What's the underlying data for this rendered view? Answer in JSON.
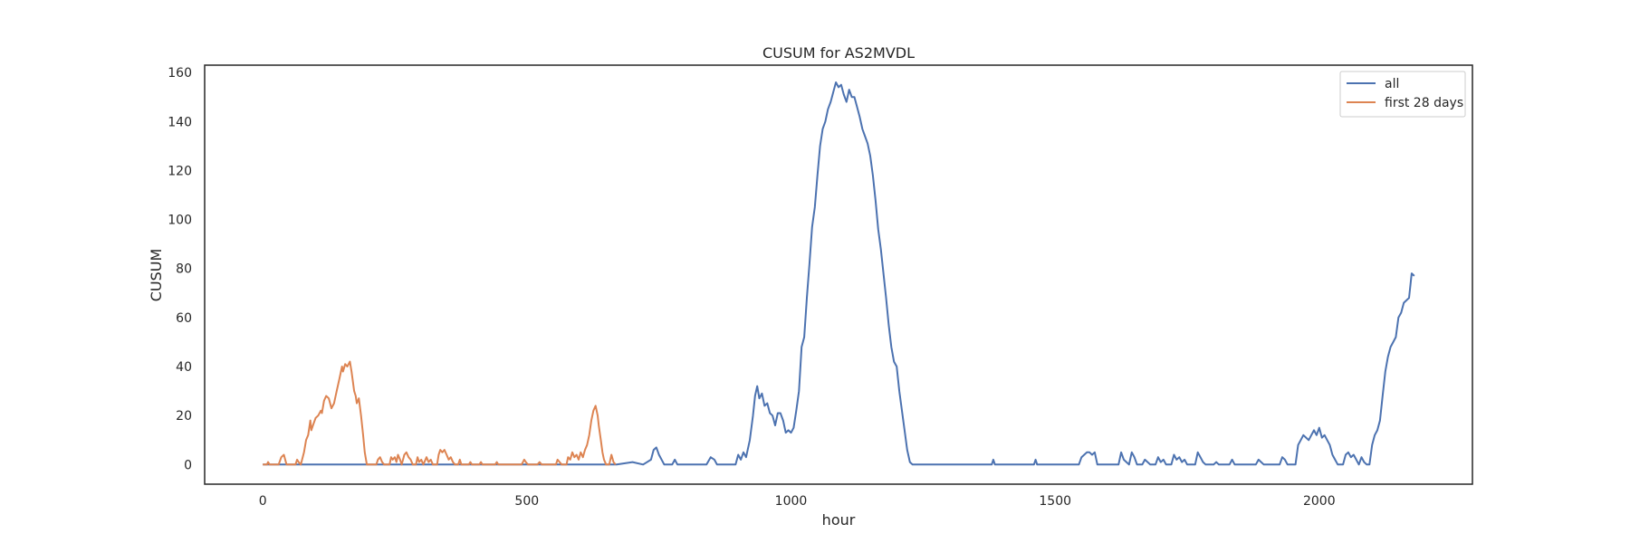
{
  "chart_data": {
    "type": "line",
    "title": "CUSUM for AS2MVDL",
    "xlabel": "hour",
    "ylabel": "CUSUM",
    "xlim": [
      -110,
      2290
    ],
    "ylim": [
      -8,
      163
    ],
    "xticks": [
      0,
      500,
      1000,
      1500,
      2000
    ],
    "yticks": [
      0,
      20,
      40,
      60,
      80,
      100,
      120,
      140,
      160
    ],
    "grid": false,
    "legend_position": "top-right",
    "series": [
      {
        "name": "all",
        "color": "#4c72b0",
        "points": [
          [
            0,
            0
          ],
          [
            670,
            0
          ],
          [
            700,
            1
          ],
          [
            720,
            0
          ],
          [
            735,
            2
          ],
          [
            740,
            6
          ],
          [
            745,
            7
          ],
          [
            750,
            4
          ],
          [
            760,
            0
          ],
          [
            775,
            0
          ],
          [
            780,
            2
          ],
          [
            785,
            0
          ],
          [
            840,
            0
          ],
          [
            848,
            3
          ],
          [
            855,
            2
          ],
          [
            860,
            0
          ],
          [
            895,
            0
          ],
          [
            900,
            4
          ],
          [
            905,
            2
          ],
          [
            910,
            5
          ],
          [
            915,
            3
          ],
          [
            922,
            10
          ],
          [
            928,
            20
          ],
          [
            932,
            28
          ],
          [
            936,
            32
          ],
          [
            940,
            27
          ],
          [
            945,
            29
          ],
          [
            950,
            24
          ],
          [
            955,
            25
          ],
          [
            960,
            21
          ],
          [
            965,
            20
          ],
          [
            970,
            16
          ],
          [
            975,
            21
          ],
          [
            980,
            21
          ],
          [
            985,
            18
          ],
          [
            990,
            13
          ],
          [
            995,
            14
          ],
          [
            1000,
            13
          ],
          [
            1005,
            15
          ],
          [
            1010,
            22
          ],
          [
            1015,
            30
          ],
          [
            1020,
            48
          ],
          [
            1025,
            52
          ],
          [
            1030,
            68
          ],
          [
            1035,
            82
          ],
          [
            1040,
            97
          ],
          [
            1045,
            105
          ],
          [
            1050,
            118
          ],
          [
            1055,
            130
          ],
          [
            1060,
            137
          ],
          [
            1065,
            140
          ],
          [
            1070,
            145
          ],
          [
            1075,
            148
          ],
          [
            1080,
            152
          ],
          [
            1085,
            156
          ],
          [
            1090,
            154
          ],
          [
            1095,
            155
          ],
          [
            1100,
            151
          ],
          [
            1105,
            148
          ],
          [
            1110,
            153
          ],
          [
            1115,
            150
          ],
          [
            1120,
            150
          ],
          [
            1125,
            146
          ],
          [
            1130,
            142
          ],
          [
            1135,
            137
          ],
          [
            1140,
            134
          ],
          [
            1145,
            131
          ],
          [
            1150,
            126
          ],
          [
            1155,
            118
          ],
          [
            1160,
            108
          ],
          [
            1165,
            96
          ],
          [
            1170,
            88
          ],
          [
            1175,
            78
          ],
          [
            1180,
            68
          ],
          [
            1185,
            57
          ],
          [
            1190,
            48
          ],
          [
            1195,
            42
          ],
          [
            1200,
            40
          ],
          [
            1205,
            30
          ],
          [
            1210,
            22
          ],
          [
            1215,
            14
          ],
          [
            1220,
            6
          ],
          [
            1225,
            1
          ],
          [
            1230,
            0
          ],
          [
            1380,
            0
          ],
          [
            1383,
            2
          ],
          [
            1386,
            0
          ],
          [
            1460,
            0
          ],
          [
            1463,
            2
          ],
          [
            1466,
            0
          ],
          [
            1545,
            0
          ],
          [
            1550,
            3
          ],
          [
            1555,
            4
          ],
          [
            1560,
            5
          ],
          [
            1565,
            5
          ],
          [
            1570,
            4
          ],
          [
            1575,
            5
          ],
          [
            1580,
            0
          ],
          [
            1620,
            0
          ],
          [
            1625,
            5
          ],
          [
            1630,
            2
          ],
          [
            1635,
            1
          ],
          [
            1640,
            0
          ],
          [
            1645,
            5
          ],
          [
            1650,
            3
          ],
          [
            1655,
            0
          ],
          [
            1665,
            0
          ],
          [
            1670,
            2
          ],
          [
            1675,
            1
          ],
          [
            1680,
            0
          ],
          [
            1690,
            0
          ],
          [
            1695,
            3
          ],
          [
            1700,
            1
          ],
          [
            1705,
            2
          ],
          [
            1710,
            0
          ],
          [
            1720,
            0
          ],
          [
            1725,
            4
          ],
          [
            1730,
            2
          ],
          [
            1735,
            3
          ],
          [
            1740,
            1
          ],
          [
            1745,
            2
          ],
          [
            1750,
            0
          ],
          [
            1765,
            0
          ],
          [
            1770,
            5
          ],
          [
            1775,
            3
          ],
          [
            1780,
            1
          ],
          [
            1785,
            0
          ],
          [
            1800,
            0
          ],
          [
            1805,
            1
          ],
          [
            1810,
            0
          ],
          [
            1830,
            0
          ],
          [
            1835,
            2
          ],
          [
            1840,
            0
          ],
          [
            1880,
            0
          ],
          [
            1885,
            2
          ],
          [
            1890,
            1
          ],
          [
            1895,
            0
          ],
          [
            1925,
            0
          ],
          [
            1930,
            3
          ],
          [
            1935,
            2
          ],
          [
            1940,
            0
          ],
          [
            1955,
            0
          ],
          [
            1960,
            8
          ],
          [
            1965,
            10
          ],
          [
            1970,
            12
          ],
          [
            1975,
            11
          ],
          [
            1980,
            10
          ],
          [
            1985,
            12
          ],
          [
            1990,
            14
          ],
          [
            1995,
            12
          ],
          [
            2000,
            15
          ],
          [
            2005,
            11
          ],
          [
            2010,
            12
          ],
          [
            2015,
            10
          ],
          [
            2020,
            8
          ],
          [
            2025,
            4
          ],
          [
            2030,
            2
          ],
          [
            2035,
            0
          ],
          [
            2045,
            0
          ],
          [
            2050,
            4
          ],
          [
            2055,
            5
          ],
          [
            2060,
            3
          ],
          [
            2065,
            4
          ],
          [
            2070,
            2
          ],
          [
            2075,
            0
          ],
          [
            2080,
            3
          ],
          [
            2085,
            1
          ],
          [
            2090,
            0
          ],
          [
            2095,
            0
          ],
          [
            2100,
            8
          ],
          [
            2105,
            12
          ],
          [
            2110,
            14
          ],
          [
            2115,
            18
          ],
          [
            2120,
            28
          ],
          [
            2125,
            38
          ],
          [
            2130,
            44
          ],
          [
            2135,
            48
          ],
          [
            2140,
            50
          ],
          [
            2145,
            52
          ],
          [
            2150,
            60
          ],
          [
            2155,
            62
          ],
          [
            2160,
            66
          ],
          [
            2165,
            67
          ],
          [
            2170,
            68
          ],
          [
            2175,
            78
          ],
          [
            2180,
            77
          ]
        ]
      },
      {
        "name": "first 28 days",
        "color": "#dd8452",
        "points": [
          [
            0,
            0
          ],
          [
            8,
            0
          ],
          [
            10,
            1
          ],
          [
            13,
            0
          ],
          [
            30,
            0
          ],
          [
            35,
            3
          ],
          [
            40,
            4
          ],
          [
            45,
            0
          ],
          [
            62,
            0
          ],
          [
            65,
            2
          ],
          [
            68,
            1
          ],
          [
            72,
            0
          ],
          [
            78,
            5
          ],
          [
            82,
            10
          ],
          [
            86,
            12
          ],
          [
            90,
            18
          ],
          [
            92,
            14
          ],
          [
            95,
            16
          ],
          [
            100,
            19
          ],
          [
            105,
            20
          ],
          [
            110,
            22
          ],
          [
            112,
            21
          ],
          [
            116,
            26
          ],
          [
            120,
            28
          ],
          [
            125,
            27
          ],
          [
            130,
            23
          ],
          [
            135,
            25
          ],
          [
            140,
            30
          ],
          [
            145,
            35
          ],
          [
            150,
            40
          ],
          [
            152,
            38
          ],
          [
            156,
            41
          ],
          [
            160,
            40
          ],
          [
            165,
            42
          ],
          [
            168,
            38
          ],
          [
            170,
            35
          ],
          [
            173,
            30
          ],
          [
            176,
            28
          ],
          [
            178,
            25
          ],
          [
            182,
            27
          ],
          [
            186,
            20
          ],
          [
            190,
            12
          ],
          [
            193,
            5
          ],
          [
            197,
            0
          ],
          [
            215,
            0
          ],
          [
            218,
            2
          ],
          [
            222,
            3
          ],
          [
            226,
            1
          ],
          [
            230,
            0
          ],
          [
            240,
            0
          ],
          [
            243,
            3
          ],
          [
            246,
            2
          ],
          [
            250,
            3
          ],
          [
            253,
            1
          ],
          [
            256,
            4
          ],
          [
            260,
            2
          ],
          [
            263,
            0
          ],
          [
            268,
            4
          ],
          [
            272,
            5
          ],
          [
            276,
            3
          ],
          [
            280,
            2
          ],
          [
            284,
            0
          ],
          [
            290,
            0
          ],
          [
            293,
            3
          ],
          [
            296,
            1
          ],
          [
            300,
            2
          ],
          [
            304,
            0
          ],
          [
            310,
            3
          ],
          [
            314,
            1
          ],
          [
            318,
            2
          ],
          [
            322,
            0
          ],
          [
            330,
            0
          ],
          [
            333,
            4
          ],
          [
            336,
            6
          ],
          [
            340,
            5
          ],
          [
            344,
            6
          ],
          [
            348,
            4
          ],
          [
            352,
            2
          ],
          [
            356,
            3
          ],
          [
            360,
            1
          ],
          [
            364,
            0
          ],
          [
            370,
            0
          ],
          [
            373,
            2
          ],
          [
            376,
            0
          ],
          [
            390,
            0
          ],
          [
            393,
            1
          ],
          [
            396,
            0
          ],
          [
            410,
            0
          ],
          [
            413,
            1
          ],
          [
            416,
            0
          ],
          [
            440,
            0
          ],
          [
            443,
            1
          ],
          [
            446,
            0
          ],
          [
            490,
            0
          ],
          [
            495,
            2
          ],
          [
            498,
            1
          ],
          [
            502,
            0
          ],
          [
            520,
            0
          ],
          [
            524,
            1
          ],
          [
            528,
            0
          ],
          [
            555,
            0
          ],
          [
            558,
            2
          ],
          [
            562,
            1
          ],
          [
            566,
            0
          ],
          [
            575,
            0
          ],
          [
            578,
            3
          ],
          [
            582,
            2
          ],
          [
            586,
            5
          ],
          [
            590,
            3
          ],
          [
            594,
            4
          ],
          [
            598,
            2
          ],
          [
            602,
            5
          ],
          [
            606,
            3
          ],
          [
            610,
            6
          ],
          [
            614,
            8
          ],
          [
            618,
            12
          ],
          [
            622,
            18
          ],
          [
            626,
            22
          ],
          [
            630,
            24
          ],
          [
            634,
            20
          ],
          [
            636,
            16
          ],
          [
            640,
            10
          ],
          [
            643,
            5
          ],
          [
            646,
            2
          ],
          [
            650,
            0
          ],
          [
            656,
            0
          ],
          [
            660,
            4
          ],
          [
            664,
            1
          ],
          [
            668,
            0
          ]
        ]
      }
    ]
  }
}
